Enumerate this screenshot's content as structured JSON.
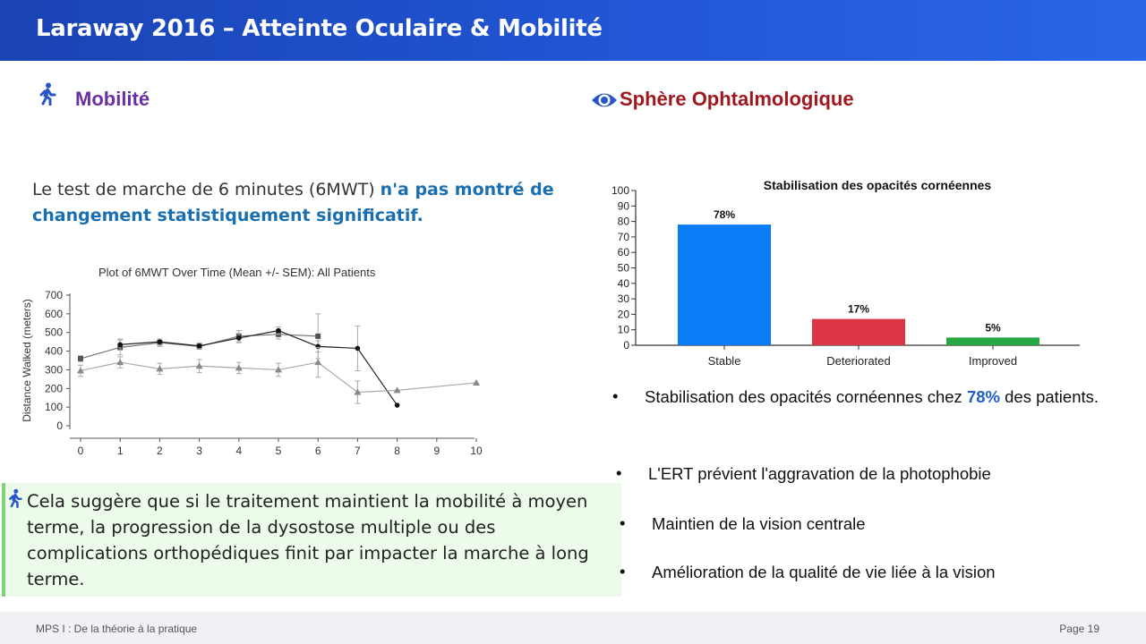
{
  "header": {
    "title": "Laraway 2016 – Atteinte Oculaire & Mobilité"
  },
  "mobility": {
    "title": "Mobilité",
    "icon": "walking-person-icon",
    "intro_plain": "Le test de marche de 6 minutes (6MWT) ",
    "intro_highlight": "n'a pas montré de changement statistiquement significatif.",
    "callout": "Cela suggère que si le traitement maintient la mobilité à moyen terme, la progression de la dysostose multiple ou des complications orthopédiques finit par impacter la marche à long terme."
  },
  "ophtalmo": {
    "title": "Sphère Ophtalmologique",
    "icon": "eye-icon",
    "bullets": [
      {
        "before": "Stabilisation des opacités cornéennes chez ",
        "highlight": "78%",
        "after": " des patients."
      },
      {
        "text": "L'ERT prévient l'aggravation de la photophobie"
      },
      {
        "text": "Maintien de la vision centrale"
      },
      {
        "text": "Amélioration de la qualité de vie liée à la vision"
      }
    ]
  },
  "chart_data": [
    {
      "type": "line",
      "title": "Plot of 6MWT Over Time (Mean +/- SEM): All Patients",
      "xlabel": "",
      "ylabel": "Distance Walked (meters)",
      "xlim": [
        0,
        10
      ],
      "ylim": [
        0,
        700
      ],
      "x_ticks": [
        0,
        1,
        2,
        3,
        4,
        5,
        6,
        7,
        8,
        9,
        10
      ],
      "y_ticks": [
        0,
        100,
        200,
        300,
        400,
        500,
        600,
        700
      ],
      "series": [
        {
          "marker": "square",
          "color": "#555555",
          "points": [
            [
              0,
              360
            ],
            [
              1,
              420
            ],
            [
              2,
              445
            ],
            [
              3,
              425
            ],
            [
              4,
              480
            ],
            [
              5,
              490
            ],
            [
              6,
              480
            ]
          ],
          "err": [
            15,
            40,
            20,
            15,
            30,
            25,
            120
          ]
        },
        {
          "marker": "circle",
          "color": "#111111",
          "points": [
            [
              1,
              435
            ],
            [
              2,
              450
            ],
            [
              3,
              428
            ],
            [
              4,
              470
            ],
            [
              5,
              510
            ],
            [
              6,
              425
            ],
            [
              7,
              415
            ],
            [
              8,
              110
            ]
          ],
          "err": [
            30,
            15,
            15,
            25,
            20,
            30,
            120,
            0
          ]
        },
        {
          "marker": "triangle",
          "color": "#888888",
          "points": [
            [
              0,
              295
            ],
            [
              1,
              340
            ],
            [
              2,
              305
            ],
            [
              3,
              320
            ],
            [
              4,
              310
            ],
            [
              5,
              300
            ],
            [
              6,
              340
            ],
            [
              7,
              180
            ],
            [
              8,
              190
            ],
            [
              10,
              230
            ]
          ],
          "err": [
            30,
            30,
            30,
            35,
            30,
            35,
            80,
            60,
            0,
            0
          ]
        }
      ]
    },
    {
      "type": "bar",
      "title": "Stabilisation des opacités cornéennes",
      "xlabel": "",
      "ylabel": "",
      "categories": [
        "Stable",
        "Deteriorated",
        "Improved"
      ],
      "values": [
        78,
        17,
        5
      ],
      "labels": [
        "78%",
        "17%",
        "5%"
      ],
      "colors": [
        "#0a7cf5",
        "#dc3545",
        "#28a745"
      ],
      "ylim": [
        0,
        100
      ],
      "y_ticks": [
        0,
        10,
        20,
        30,
        40,
        50,
        60,
        70,
        80,
        90,
        100
      ]
    }
  ],
  "footer": {
    "left": "MPS I : De la théorie à la pratique",
    "right": "Page 19"
  }
}
